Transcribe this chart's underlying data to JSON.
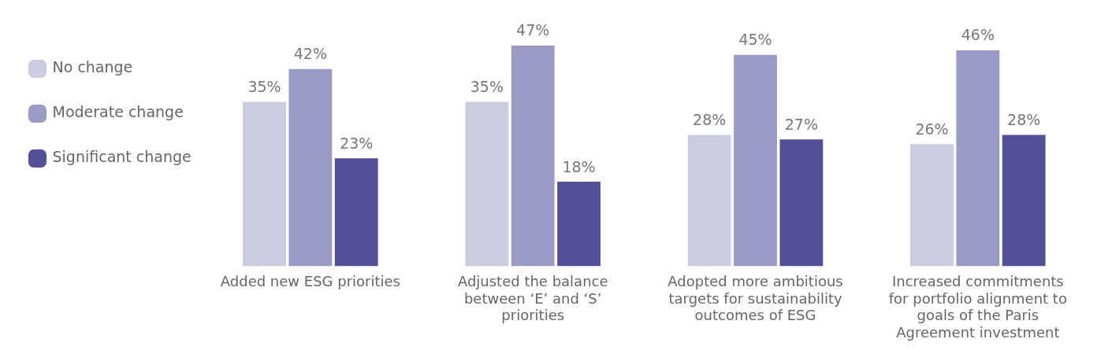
{
  "chart_data": {
    "type": "bar",
    "categories": [
      "Added new ESG priorities",
      "Adjusted the balance between ‘E’ and ‘S’ priorities",
      "Adopted more ambitious targets for sustainability outcomes of ESG",
      "Increased commitments for portfolio alignment to goals of the Paris Agreement investment"
    ],
    "series": [
      {
        "name": "No change",
        "color": "#cccce1",
        "values": [
          35,
          35,
          28,
          26
        ],
        "value_labels": [
          "35%",
          "35%",
          "28%",
          "26%"
        ]
      },
      {
        "name": "Moderate change",
        "color": "#9b9ac4",
        "values": [
          42,
          47,
          45,
          46
        ],
        "value_labels": [
          "42%",
          "47%",
          "45%",
          "46%"
        ]
      },
      {
        "name": "Significant change",
        "color": "#544f99",
        "values": [
          23,
          18,
          27,
          28
        ],
        "value_labels": [
          "23%",
          "18%",
          "27%",
          "28%"
        ]
      }
    ],
    "legend": "top left",
    "grid": false
  }
}
